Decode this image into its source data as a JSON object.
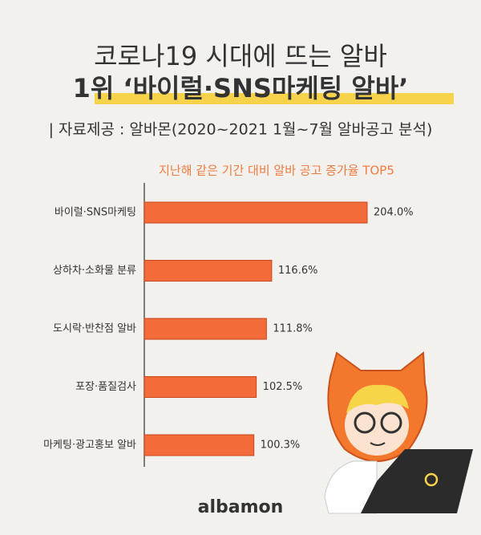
{
  "chart_data": {
    "type": "hbar",
    "title": "코로나19 시대에 뜨는 알바",
    "subtitle": "1위 ‘바이럴·SNS마케팅 알바’",
    "source": "| 자료제공 : 알바몬(2020~2021 1월~7월 알바공고 분석)",
    "chart_title": "지난해 같은 기간 대비 알바 공고 증가율 TOP5",
    "categories": [
      "바이럴·SNS마케팅",
      "상하차·소화물 분류",
      "도시락·반찬점 알바",
      "포장·품질검사",
      "마케팅·광고홍보 알바"
    ],
    "values": [
      204.0,
      116.6,
      111.8,
      102.5,
      100.3
    ],
    "value_labels": [
      "204.0%",
      "116.6%",
      "111.8%",
      "102.5%",
      "100.3%"
    ],
    "color": "#f26b38",
    "brand": "albamon"
  }
}
